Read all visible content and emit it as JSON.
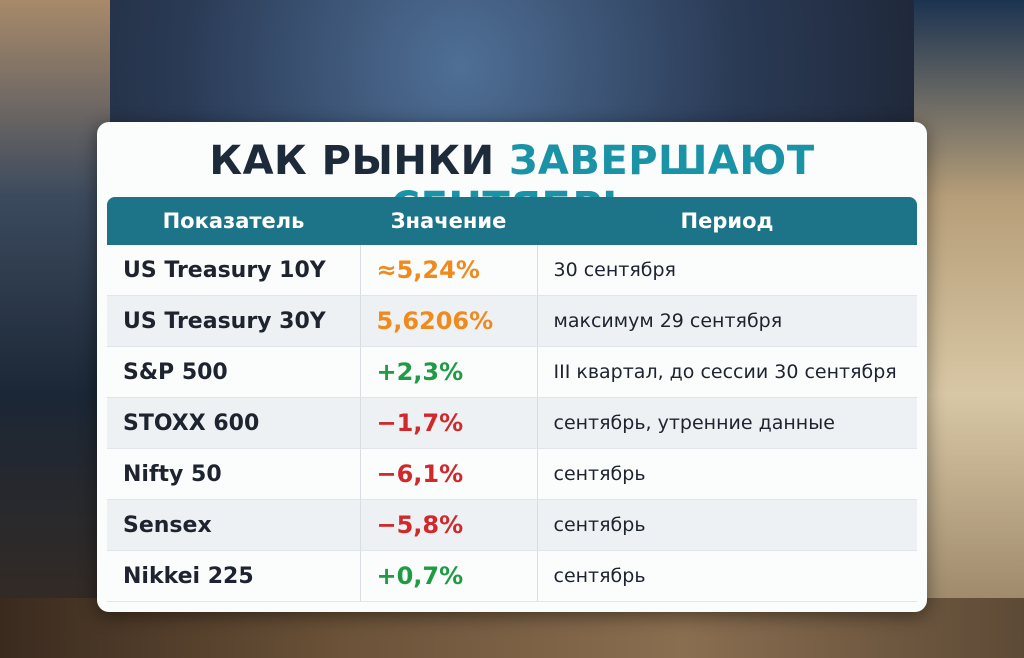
{
  "title": {
    "part1": "КАК РЫНКИ",
    "part2": "ЗАВЕРШАЮТ СЕНТЯБРЬ"
  },
  "table": {
    "header": [
      "Показатель",
      "Значение",
      "Период"
    ],
    "rows": [
      {
        "cells": [
          "US Treasury 10Y",
          "≈5,24%",
          "30 сентября"
        ],
        "color": "#f08a1c"
      },
      {
        "cells": [
          "US Treasury 30Y",
          "5,6206%",
          "максимум 29 сентября"
        ],
        "color": "#f08a1c"
      },
      {
        "cells": [
          "S&P 500",
          "+2,3%",
          "III квартал, до сессии 30 сентября"
        ],
        "color": "#1f9a45"
      },
      {
        "cells": [
          "STOXX 600",
          "−1,7%",
          "сентябрь, утренние данные"
        ],
        "color": "#d0282b"
      },
      {
        "cells": [
          "Nifty 50",
          "−6,1%",
          "сентябрь"
        ],
        "color": "#d0282b"
      },
      {
        "cells": [
          "Sensex",
          "−5,8%",
          "сентябрь"
        ],
        "color": "#d0282b"
      },
      {
        "cells": [
          "Nikkei 225",
          "+0,7%",
          "сентябрь"
        ],
        "color": "#1f9a45"
      }
    ]
  }
}
